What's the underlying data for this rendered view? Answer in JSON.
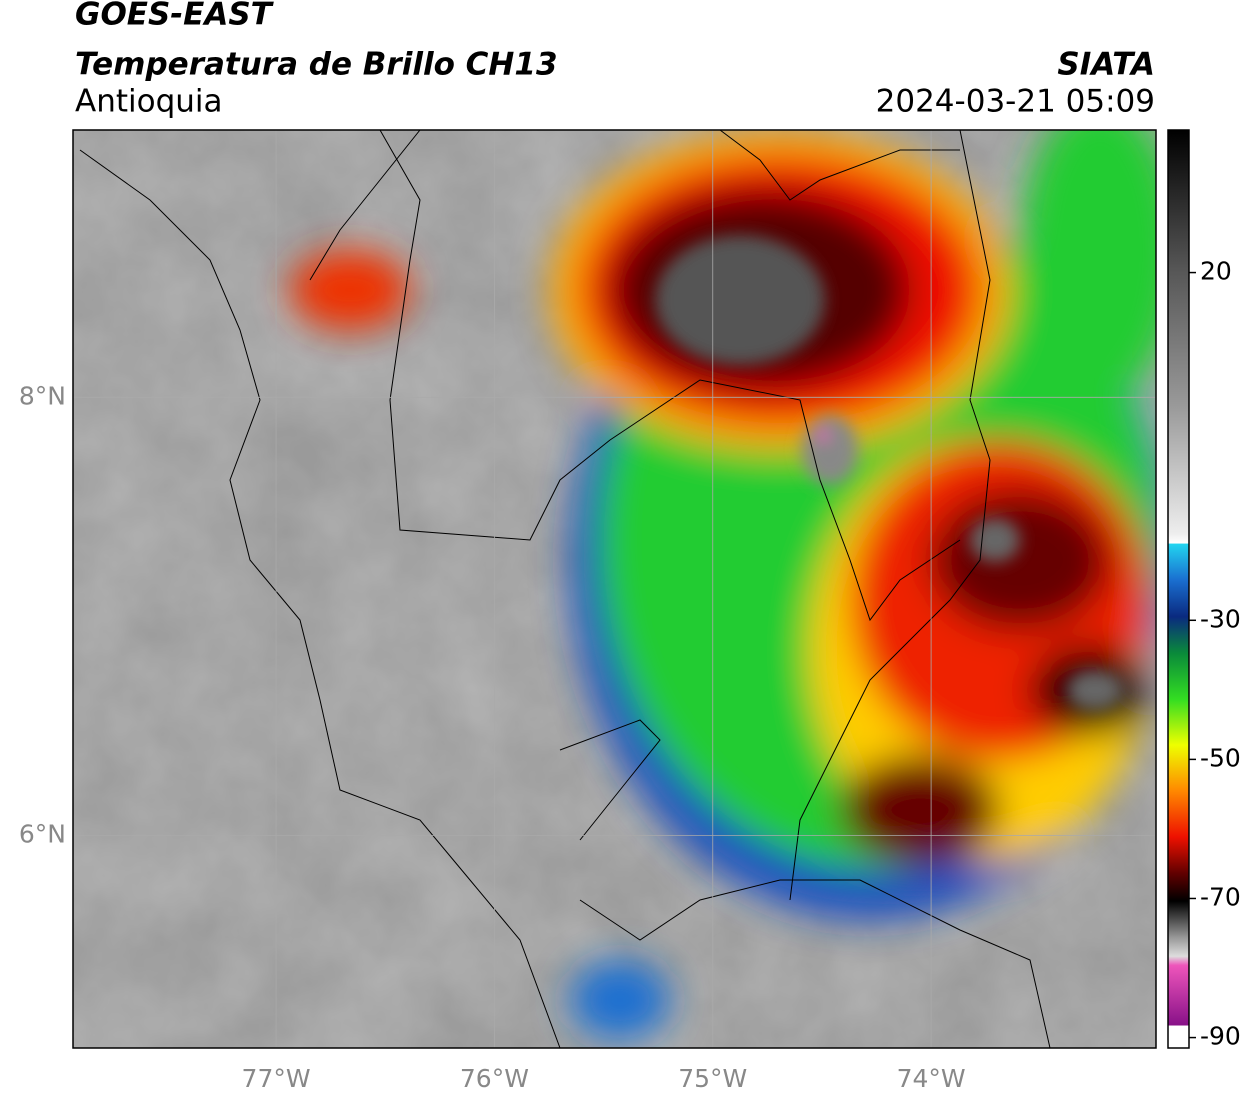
{
  "header": {
    "satellite": "GOES-EAST",
    "product": "Temperatura de Brillo CH13",
    "region": "Antioquia",
    "organization": "SIATA",
    "datetime": "2024-03-21 05:09"
  },
  "map": {
    "xlim": [
      -77.93,
      -72.97
    ],
    "ylim": [
      5.03,
      9.22
    ],
    "xticks": [
      {
        "value": -77,
        "label": "77°W"
      },
      {
        "value": -76,
        "label": "76°W"
      },
      {
        "value": -75,
        "label": "75°W"
      },
      {
        "value": -74,
        "label": "74°W"
      }
    ],
    "yticks": [
      {
        "value": 8,
        "label": "8°N"
      },
      {
        "value": 6,
        "label": "6°N"
      }
    ],
    "grid": true
  },
  "colorbar": {
    "ylim": [
      -91.5,
      40.5
    ],
    "yticks": [
      20,
      -30,
      -50,
      -70,
      -90
    ]
  }
}
